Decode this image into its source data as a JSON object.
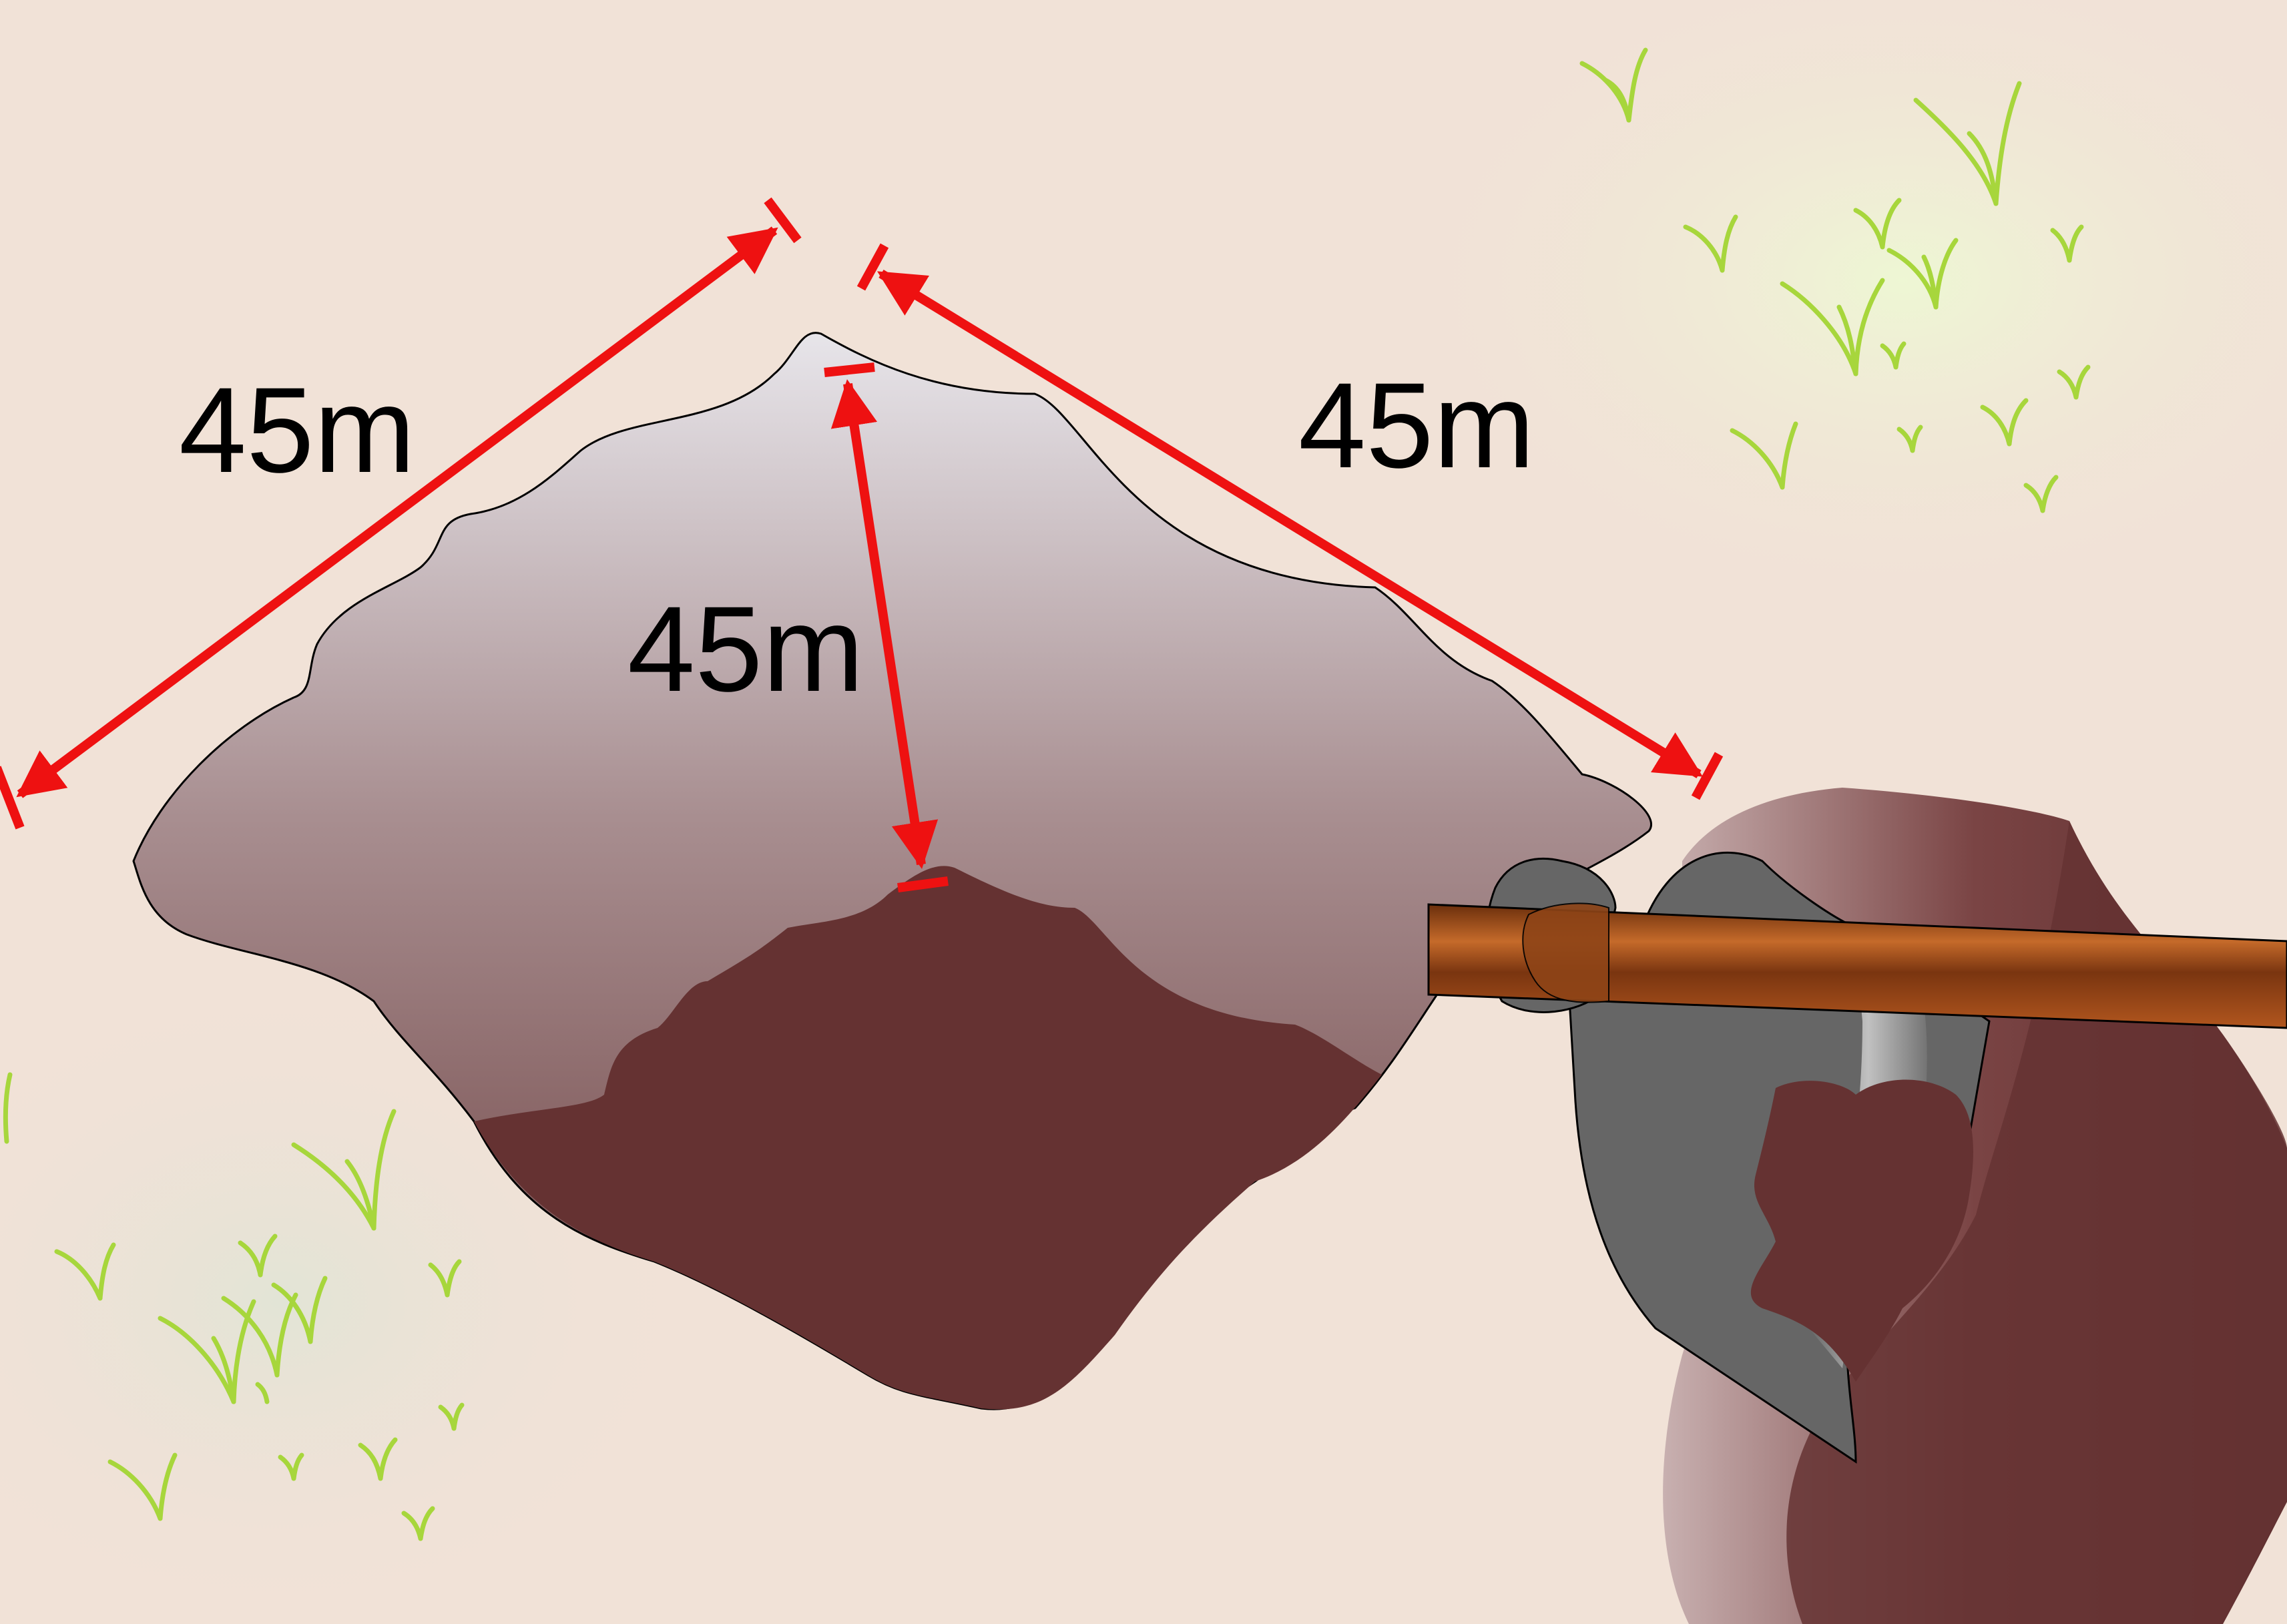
{
  "measurements": {
    "left_side": "45m",
    "right_side": "45m",
    "depth": "45m"
  },
  "colors": {
    "background": "#f1e2d7",
    "soil_dark": "#653232",
    "mound_top": "#e6e4e8",
    "dimension_arrow": "#ee1111",
    "grass": "#a7d63c",
    "hoe_blade": "#666666",
    "handle": "#8a3e12"
  },
  "icons": {
    "tool": "hoe-icon",
    "grass": "grass-tuft-icon"
  }
}
